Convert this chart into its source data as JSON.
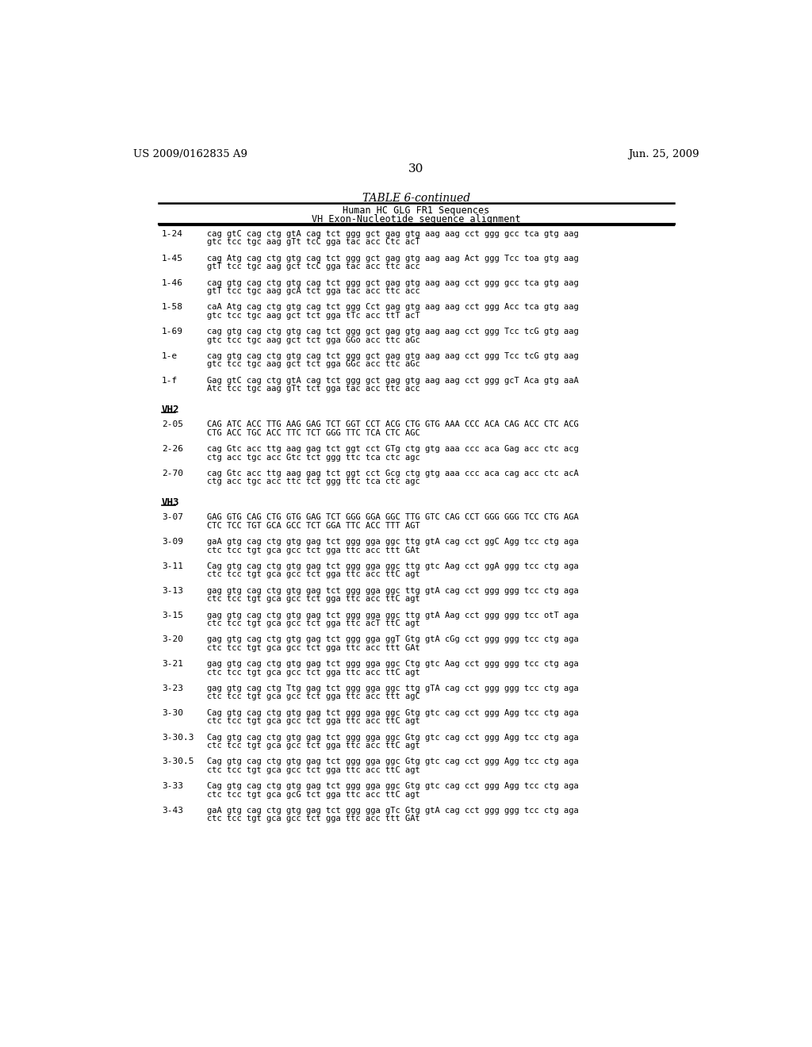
{
  "header_left": "US 2009/0162835 A9",
  "header_right": "Jun. 25, 2009",
  "page_number": "30",
  "table_title": "TABLE 6-continued",
  "table_subtitle1": "Human HC GLG FR1 Sequences",
  "table_subtitle2": "VH Exon-Nucleotide sequence alignment",
  "background_color": "#ffffff",
  "text_color": "#000000",
  "entries": [
    {
      "label": "1-24",
      "lines": [
        "cag gtC cag ctg gtA cag tct ggg gct gag gtg aag aag cct ggg gcc tca gtg aag",
        "gtc tcc tgc aag gTt tcC gga tac acc Ctc acT"
      ]
    },
    {
      "label": "1-45",
      "lines": [
        "cag Atg cag ctg gtg cag tct ggg gct gag gtg aag aag Act ggg Tcc toa gtg aag",
        "gtT tcc tgc aag gct tcC gga tac acc ttc acc"
      ]
    },
    {
      "label": "1-46",
      "lines": [
        "cag gtg cag ctg gtg cag tct ggg gct gag gtg aag aag cct ggg gcc tca gtg aag",
        "gtT tcc tgc aag gcA tct gga tac acc ttc acc"
      ]
    },
    {
      "label": "1-58",
      "lines": [
        "caA Atg cag ctg gtg cag tct ggg Cct gag gtg aag aag cct ggg Acc tca gtg aag",
        "gtc tcc tgc aag gct tct gga tTc acc ttT acT"
      ]
    },
    {
      "label": "1-69",
      "lines": [
        "cag gtg cag ctg gtg cag tct ggg gct gag gtg aag aag cct ggg Tcc tcG gtg aag",
        "gtc tcc tgc aag gct tct gga GGo acc ttc aGc"
      ]
    },
    {
      "label": "1-e",
      "lines": [
        "cag gtg cag ctg gtg cag tct ggg gct gag gtg aag aag cct ggg Tcc tcG gtg aag",
        "gtc tcc tgc aag gct tct gga GGc acc ttc aGc"
      ]
    },
    {
      "label": "1-f",
      "lines": [
        "Gag gtC cag ctg gtA cag tct ggg gct gag gtg aag aag cct ggg gcT Aca gtg aaA",
        "Atc tcc tgc aag gTt tct gga tac acc ttc acc"
      ]
    },
    {
      "label": "VH2",
      "lines": [],
      "section": true
    },
    {
      "label": "2-05",
      "lines": [
        "CAG ATC ACC TTG AAG GAG TCT GGT CCT ACG CTG GTG AAA CCC ACA CAG ACC CTC ACG",
        "CTG ACC TGC ACC TTC TCT GGG TTC TCA CTC AGC"
      ]
    },
    {
      "label": "2-26",
      "lines": [
        "cag Gtc acc ttg aag gag tct ggt cct GTg ctg gtg aaa ccc aca Gag acc ctc acg",
        "ctg acc tgc acc Gtc tct ggg ttc tca ctc agc"
      ]
    },
    {
      "label": "2-70",
      "lines": [
        "cag Gtc acc ttg aag gag tct ggt cct Gcg ctg gtg aaa ccc aca cag acc ctc acA",
        "ctg acc tgc acc ttc tct ggg ttc tca ctc agc"
      ]
    },
    {
      "label": "VH3",
      "lines": [],
      "section": true
    },
    {
      "label": "3-07",
      "lines": [
        "GAG GTG CAG CTG GTG GAG TCT GGG GGA GGC TTG GTC CAG CCT GGG GGG TCC CTG AGA",
        "CTC TCC TGT GCA GCC TCT GGA TTC ACC TTT AGT"
      ]
    },
    {
      "label": "3-09",
      "lines": [
        "gaA gtg cag ctg gtg gag tct ggg gga ggc ttg gtA cag cct ggC Agg tcc ctg aga",
        "ctc tcc tgt gca gcc tct gga ttc acc ttt GAt"
      ]
    },
    {
      "label": "3-11",
      "lines": [
        "Cag gtg cag ctg gtg gag tct ggg gga ggc ttg gtc Aag cct ggA ggg tcc ctg aga",
        "ctc tcc tgt gca gcc tct gga ttc acc ttC agt"
      ]
    },
    {
      "label": "3-13",
      "lines": [
        "gag gtg cag ctg gtg gag tct ggg gga ggc ttg gtA cag cct ggg ggg tcc ctg aga",
        "ctc tcc tgt gca gcc tct gga ttc acc ttC agt"
      ]
    },
    {
      "label": "3-15",
      "lines": [
        "gag gtg cag ctg gtg gag tct ggg gga ggc ttg gtA Aag cct ggg ggg tcc otT aga",
        "ctc tcc tgt gca gcc tct gga ttc acT ttC agt"
      ]
    },
    {
      "label": "3-20",
      "lines": [
        "gag gtg cag ctg gtg gag tct ggg gga ggT Gtg gtA cGg cct ggg ggg tcc ctg aga",
        "ctc tcc tgt gca gcc tct gga ttc acc ttt GAt"
      ]
    },
    {
      "label": "3-21",
      "lines": [
        "gag gtg cag ctg gtg gag tct ggg gga ggc Ctg gtc Aag cct ggg ggg tcc ctg aga",
        "ctc tcc tgt gca gcc tct gga ttc acc ttC agt"
      ]
    },
    {
      "label": "3-23",
      "lines": [
        "gag gtg cag ctg Ttg gag tct ggg gga ggc ttg gTA cag cct ggg ggg tcc ctg aga",
        "ctc tcc tgt gca gcc tct gga ttc acc ttt agC"
      ]
    },
    {
      "label": "3-30",
      "lines": [
        "Cag gtg cag ctg gtg gag tct ggg gga ggc Gtg gtc cag cct ggg Agg tcc ctg aga",
        "ctc tcc tgt gca gcc tct gga ttc acc ttC agt"
      ]
    },
    {
      "label": "3-30.3",
      "lines": [
        "Cag gtg cag ctg gtg gag tct ggg gga ggc Gtg gtc cag cct ggg Agg tcc ctg aga",
        "ctc tcc tgt gca gcc tct gga ttc acc ttC agt"
      ]
    },
    {
      "label": "3-30.5",
      "lines": [
        "Cag gtg cag ctg gtg gag tct ggg gga ggc Gtg gtc cag cct ggg Agg tcc ctg aga",
        "ctc tcc tgt gca gcc tct gga ttc acc ttC agt"
      ]
    },
    {
      "label": "3-33",
      "lines": [
        "Cag gtg cag ctg gtg gag tct ggg gga ggc Gtg gtc cag cct ggg Agg tcc ctg aga",
        "ctc tcc tgt gca gcG tct gga ttc acc ttC agt"
      ]
    },
    {
      "label": "3-43",
      "lines": [
        "gaA gtg cag ctg gtg gag tct ggg gga gTc Gtg gtA cag cct ggg ggg tcc ctg aga",
        "ctc tcc tgt gca gcc tct gga ttc acc ttt GAt"
      ]
    }
  ]
}
